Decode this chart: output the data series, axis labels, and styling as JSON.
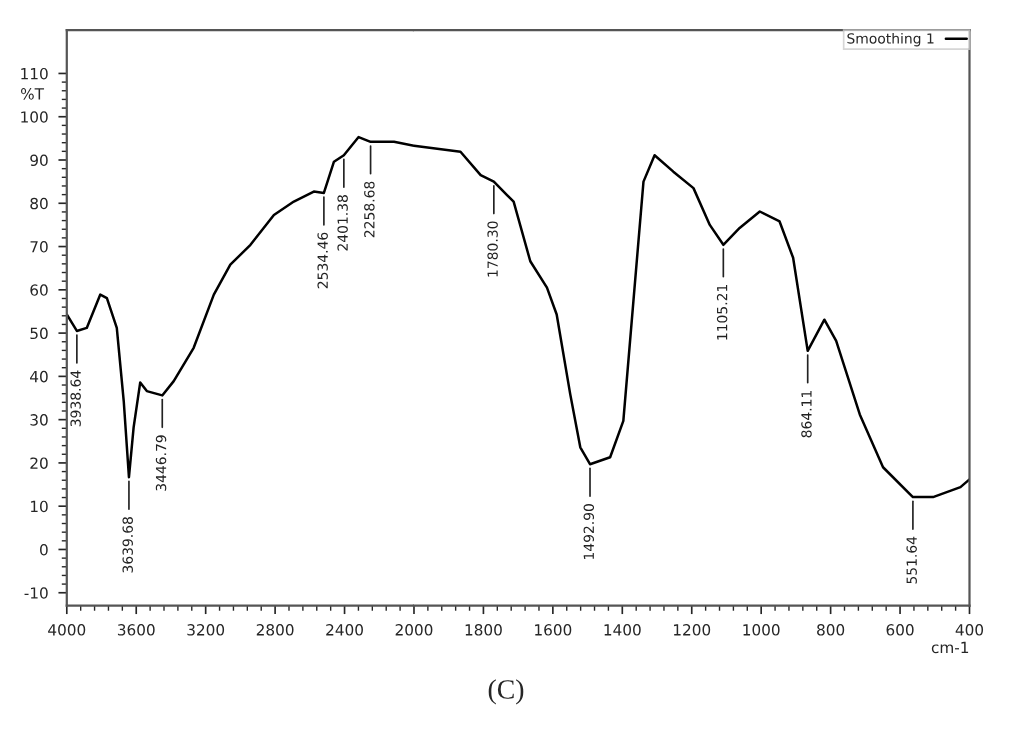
{
  "chart_data": [
    {
      "type": "line",
      "ylabel": "%T",
      "grid": false,
      "tick_labels": "xy",
      "x": [
        4000,
        3942,
        3885,
        3807,
        3769,
        3712,
        3672,
        3642,
        3615,
        3577,
        3539,
        3450,
        3384,
        3269,
        3153,
        3058,
        2942,
        2807,
        2692,
        2577,
        2519,
        2461,
        2404,
        2319,
        2250,
        2115,
        2000
      ],
      "series": [
        {
          "color": "#000000",
          "values": [
            54.3,
            50.5,
            51.2,
            58.9,
            58.1,
            51.2,
            34.3,
            16.7,
            28.2,
            38.6,
            36.6,
            35.6,
            38.9,
            46.6,
            58.9,
            65.8,
            70.4,
            77.3,
            80.4,
            82.7,
            82.4,
            89.6,
            91.1,
            95.3,
            94.2,
            94.2,
            93.3
          ]
        }
      ],
      "xlim": [
        4000,
        2000
      ],
      "xticks": [
        4000,
        3600,
        3200,
        2800,
        2400,
        2000
      ],
      "ylim": [
        -13,
        120
      ],
      "yticks": [
        -10,
        0,
        10,
        20,
        30,
        40,
        50,
        60,
        70,
        80,
        90,
        100,
        110
      ],
      "annotations": [
        {
          "text": "3938.64",
          "x": 3942,
          "y": 50.5
        },
        {
          "text": "3639.68",
          "x": 3642,
          "y": 16.7
        },
        {
          "text": "3446.79",
          "x": 3450,
          "y": 35.6
        },
        {
          "text": "2534.46",
          "x": 2519,
          "y": 82.4
        },
        {
          "text": "2401.38",
          "x": 2404,
          "y": 91.1
        },
        {
          "text": "2258.68",
          "x": 2250,
          "y": 94.2
        },
        "(C)"
      ]
    },
    {
      "type": "line",
      "xlabel": "cm-1",
      "legend": "top right",
      "grid": false,
      "tick_labels": "x",
      "x": [
        2000,
        1866,
        1808,
        1770,
        1732,
        1713,
        1665,
        1617,
        1589,
        1550,
        1521,
        1493,
        1435,
        1397,
        1368,
        1339,
        1307,
        1253,
        1195,
        1148,
        1109,
        1062,
        1004,
        947,
        908,
        866,
        818,
        784,
        716,
        649,
        563,
        505,
        426,
        400
      ],
      "series": [
        {
          "name": "Smoothing 1",
          "color": "#000000",
          "values": [
            93.3,
            91.9,
            86.5,
            85.0,
            81.9,
            80.4,
            66.6,
            60.5,
            54.3,
            35.9,
            23.6,
            19.7,
            21.3,
            29.7,
            57.4,
            85.0,
            91.1,
            87.3,
            83.5,
            75.0,
            70.4,
            74.3,
            78.1,
            75.8,
            67.4,
            45.9,
            53.1,
            48.2,
            31.2,
            19.0,
            12.1,
            12.1,
            14.4,
            16.2
          ]
        }
      ],
      "xlim": [
        2000,
        400
      ],
      "xticks": [
        1800,
        1600,
        1400,
        1200,
        1000,
        800,
        600,
        400
      ],
      "ylim": [
        -13,
        120
      ],
      "annotations": [
        {
          "text": "1780.30",
          "x": 1770,
          "y": 85.0
        },
        {
          "text": "1492.90",
          "x": 1493,
          "y": 19.7
        },
        {
          "text": "1105.21",
          "x": 1109,
          "y": 70.4
        },
        {
          "text": "864.11",
          "x": 866,
          "y": 45.9
        },
        {
          "text": "551.64",
          "x": 563,
          "y": 12.1
        }
      ]
    }
  ]
}
